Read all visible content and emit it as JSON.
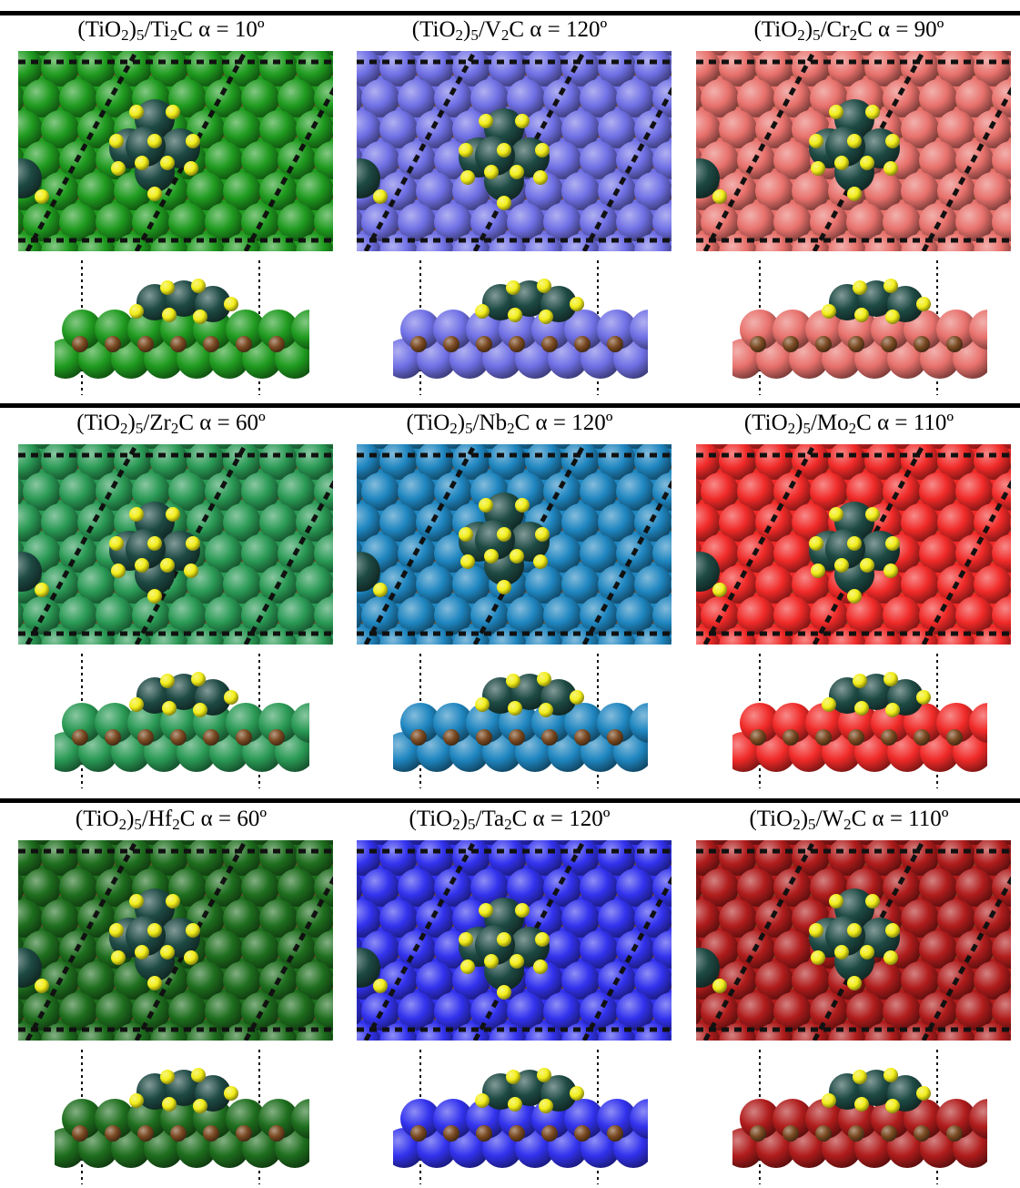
{
  "panels": [
    {
      "id": "ti2c",
      "label": {
        "prefix": "(TiO",
        "sub1": "2",
        "mid": ")",
        "sub2": "5",
        "metal": "/Ti",
        "sub3": "2",
        "suffix": "C α = 10º"
      },
      "metal_color": "#1f9b1f",
      "row": 0,
      "col": 0
    },
    {
      "id": "v2c",
      "label": {
        "prefix": "(TiO",
        "sub1": "2",
        "mid": ")",
        "sub2": "5",
        "metal": "/V",
        "sub3": "2",
        "suffix": "C α = 120º"
      },
      "metal_color": "#7070e6",
      "row": 0,
      "col": 1
    },
    {
      "id": "cr2c",
      "label": {
        "prefix": "(TiO",
        "sub1": "2",
        "mid": ")",
        "sub2": "5",
        "metal": "/Cr",
        "sub3": "2",
        "suffix": "C α = 90º"
      },
      "metal_color": "#e8716c",
      "row": 0,
      "col": 2
    },
    {
      "id": "zr2c",
      "label": {
        "prefix": "(TiO",
        "sub1": "2",
        "mid": ")",
        "sub2": "5",
        "metal": "/Zr",
        "sub3": "2",
        "suffix": "C α = 60º"
      },
      "metal_color": "#2a9a55",
      "row": 1,
      "col": 0
    },
    {
      "id": "nb2c",
      "label": {
        "prefix": "(TiO",
        "sub1": "2",
        "mid": ")",
        "sub2": "5",
        "metal": "/Nb",
        "sub3": "2",
        "suffix": "C α = 120º"
      },
      "metal_color": "#1f86c0",
      "row": 1,
      "col": 1
    },
    {
      "id": "mo2c",
      "label": {
        "prefix": "(TiO",
        "sub1": "2",
        "mid": ")",
        "sub2": "5",
        "metal": "/Mo",
        "sub3": "2",
        "suffix": "C α = 110º"
      },
      "metal_color": "#f02a28",
      "row": 1,
      "col": 2
    },
    {
      "id": "hf2c",
      "label": {
        "prefix": "(TiO",
        "sub1": "2",
        "mid": ")",
        "sub2": "5",
        "metal": "/Hf",
        "sub3": "2",
        "suffix": "C α = 60º"
      },
      "metal_color": "#1e6e1e",
      "row": 2,
      "col": 0
    },
    {
      "id": "ta2c",
      "label": {
        "prefix": "(TiO",
        "sub1": "2",
        "mid": ")",
        "sub2": "5",
        "metal": "/Ta",
        "sub3": "2",
        "suffix": "C α = 120º"
      },
      "metal_color": "#3232ee",
      "row": 2,
      "col": 1
    },
    {
      "id": "w2c",
      "label": {
        "prefix": "(TiO",
        "sub1": "2",
        "mid": ")",
        "sub2": "5",
        "metal": "/W",
        "sub3": "2",
        "suffix": "C α = 110º"
      },
      "metal_color": "#b01c1c",
      "row": 2,
      "col": 2
    }
  ],
  "atom_colors": {
    "ti": "#1e4a44",
    "oxygen": "#f2ee1a",
    "carbon": "#7a4a22"
  }
}
